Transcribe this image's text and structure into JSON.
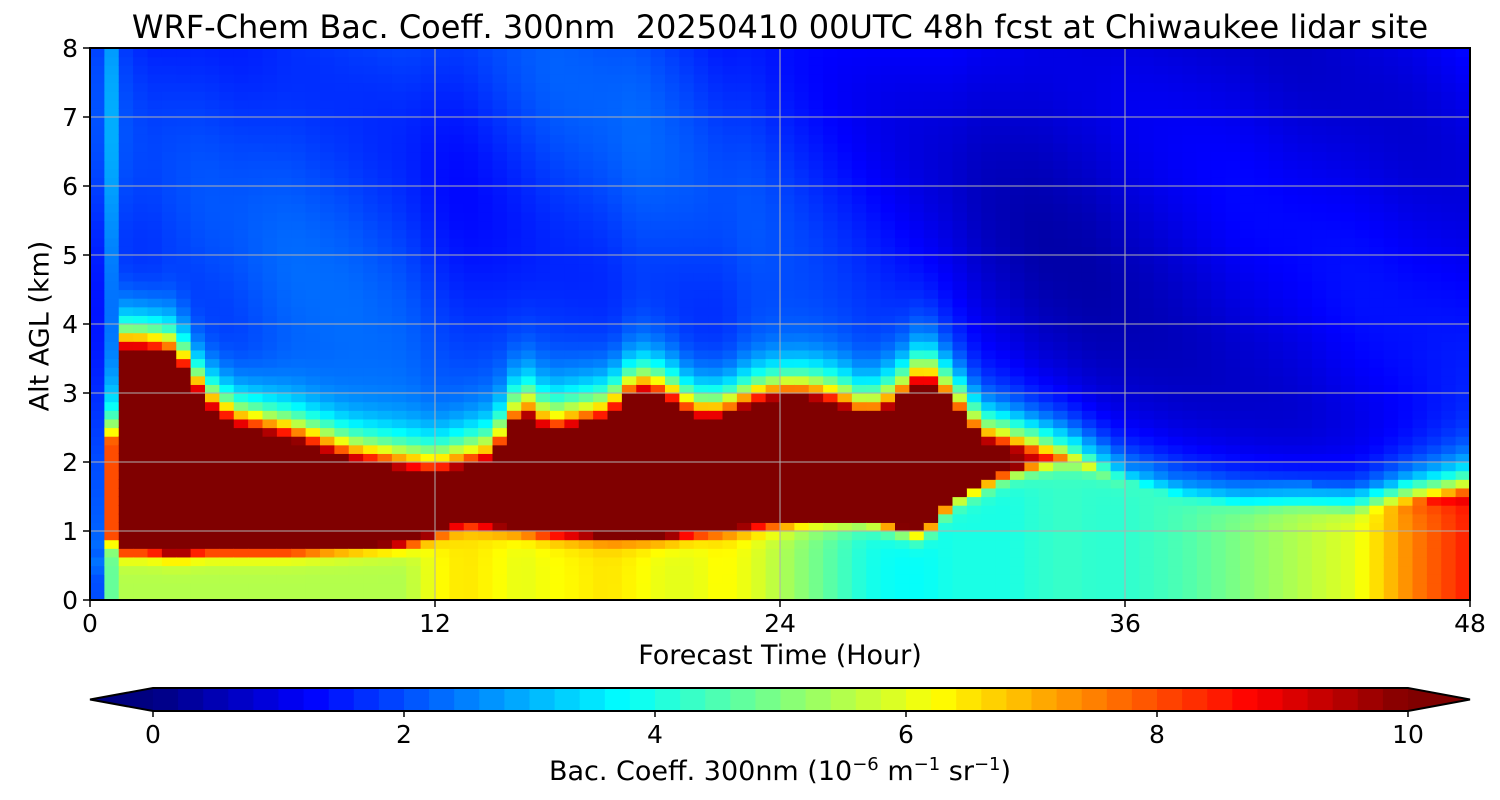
{
  "chart_data": {
    "type": "heatmap",
    "title": "WRF-Chem Bac. Coeff. 300nm  20250410 00UTC 48h fcst at Chiwaukee lidar site",
    "xlabel": "Forecast Time (Hour)",
    "ylabel": "Alt AGL (km)",
    "xlim": [
      0,
      48
    ],
    "ylim": [
      0,
      8
    ],
    "x_ticks": [
      0,
      12,
      24,
      36,
      48
    ],
    "y_ticks": [
      0,
      1,
      2,
      3,
      4,
      5,
      6,
      7,
      8
    ],
    "grid": true,
    "colormap": "jet",
    "colorbar": {
      "label_main": "Bac. Coeff. 300nm  (10",
      "label_exp1": "−6",
      "label_mid": " m",
      "label_exp2": "−1",
      "label_mid2": " sr",
      "label_exp3": "−1",
      "label_end": ")",
      "range": [
        0,
        10
      ],
      "ticks": [
        0,
        2,
        4,
        6,
        8,
        10
      ],
      "extend": "both",
      "orientation": "horizontal"
    },
    "x_hours": [
      0,
      0.5,
      1,
      2,
      3,
      4,
      5,
      7,
      9,
      11,
      12,
      13,
      14,
      15,
      16,
      18,
      19,
      20,
      21,
      22,
      23,
      24,
      25,
      26,
      27,
      28,
      29,
      30,
      31,
      32,
      33,
      34,
      35,
      36,
      38,
      40,
      42,
      44,
      46,
      48
    ],
    "y_km": [
      0,
      0.25,
      0.5,
      0.75,
      1,
      1.25,
      1.5,
      1.75,
      2,
      2.25,
      2.5,
      2.75,
      3,
      3.25,
      3.5,
      3.75,
      4,
      4.5,
      5,
      5.5,
      6,
      6.5,
      7,
      7.5,
      8
    ],
    "features": {
      "plume_top_km": [
        0,
        1,
        3.6,
        3.6,
        3.5,
        2.8,
        2.5,
        2.3,
        2.0,
        1.85,
        1.8,
        1.9,
        2.0,
        2.7,
        2.4,
        2.6,
        3.0,
        2.9,
        2.6,
        2.6,
        2.8,
        2.9,
        2.9,
        2.8,
        2.6,
        2.8,
        3.2,
        2.8,
        2.3,
        2.2,
        2.1,
        2.05,
        1.9,
        1.7,
        1.5,
        1.4,
        1.4,
        1.3,
        1.4,
        1.5
      ],
      "plume_bottom_km": [
        0,
        1,
        0.75,
        0.75,
        0.7,
        0.75,
        0.75,
        0.75,
        0.8,
        0.85,
        1.0,
        1.15,
        1.1,
        1.05,
        1.0,
        0.95,
        0.95,
        0.95,
        1.0,
        1.05,
        1.1,
        1.15,
        1.2,
        1.2,
        1.2,
        1.1,
        1.0,
        1.5,
        1.7,
        1.9,
        2.0,
        2.05,
        1.9,
        1.7,
        1.5,
        1.4,
        1.4,
        1.3,
        1.4,
        1.5
      ],
      "plume_core_value": [
        0,
        5,
        11,
        11,
        11,
        11,
        11,
        11,
        11,
        11,
        11,
        11,
        11,
        11,
        11,
        11,
        11,
        11,
        11,
        11,
        11,
        11,
        11,
        11,
        11,
        11,
        11,
        11,
        10.5,
        10,
        9,
        7,
        5.5,
        4.5,
        4,
        4,
        4.2,
        5,
        8,
        9.5
      ],
      "boundary_layer_value": [
        0,
        4,
        5.5,
        5.5,
        5.5,
        5.5,
        5.5,
        5.5,
        5.5,
        5.5,
        6.2,
        6.5,
        6.3,
        6.0,
        6.2,
        6.5,
        6.3,
        6.0,
        6.0,
        6.3,
        6.0,
        5.5,
        5.0,
        4.5,
        4.0,
        3.8,
        3.8,
        4.0,
        4.0,
        4.0,
        4.2,
        4.3,
        4.2,
        4.2,
        4.5,
        5.0,
        5.5,
        6.0,
        7.5,
        8.5
      ],
      "free_troposphere_value": [
        0,
        3.5,
        1.8,
        1.6,
        1.7,
        1.8,
        1.8,
        2.0,
        2.0,
        1.9,
        1.7,
        1.6,
        1.7,
        1.8,
        1.9,
        1.9,
        2.0,
        1.9,
        1.8,
        1.7,
        1.8,
        1.7,
        1.6,
        1.5,
        1.4,
        1.3,
        1.2,
        1.1,
        0.9,
        0.8,
        0.7,
        0.7,
        0.7,
        0.8,
        0.9,
        1.0,
        1.0,
        1.1,
        1.1,
        1.2
      ]
    }
  }
}
